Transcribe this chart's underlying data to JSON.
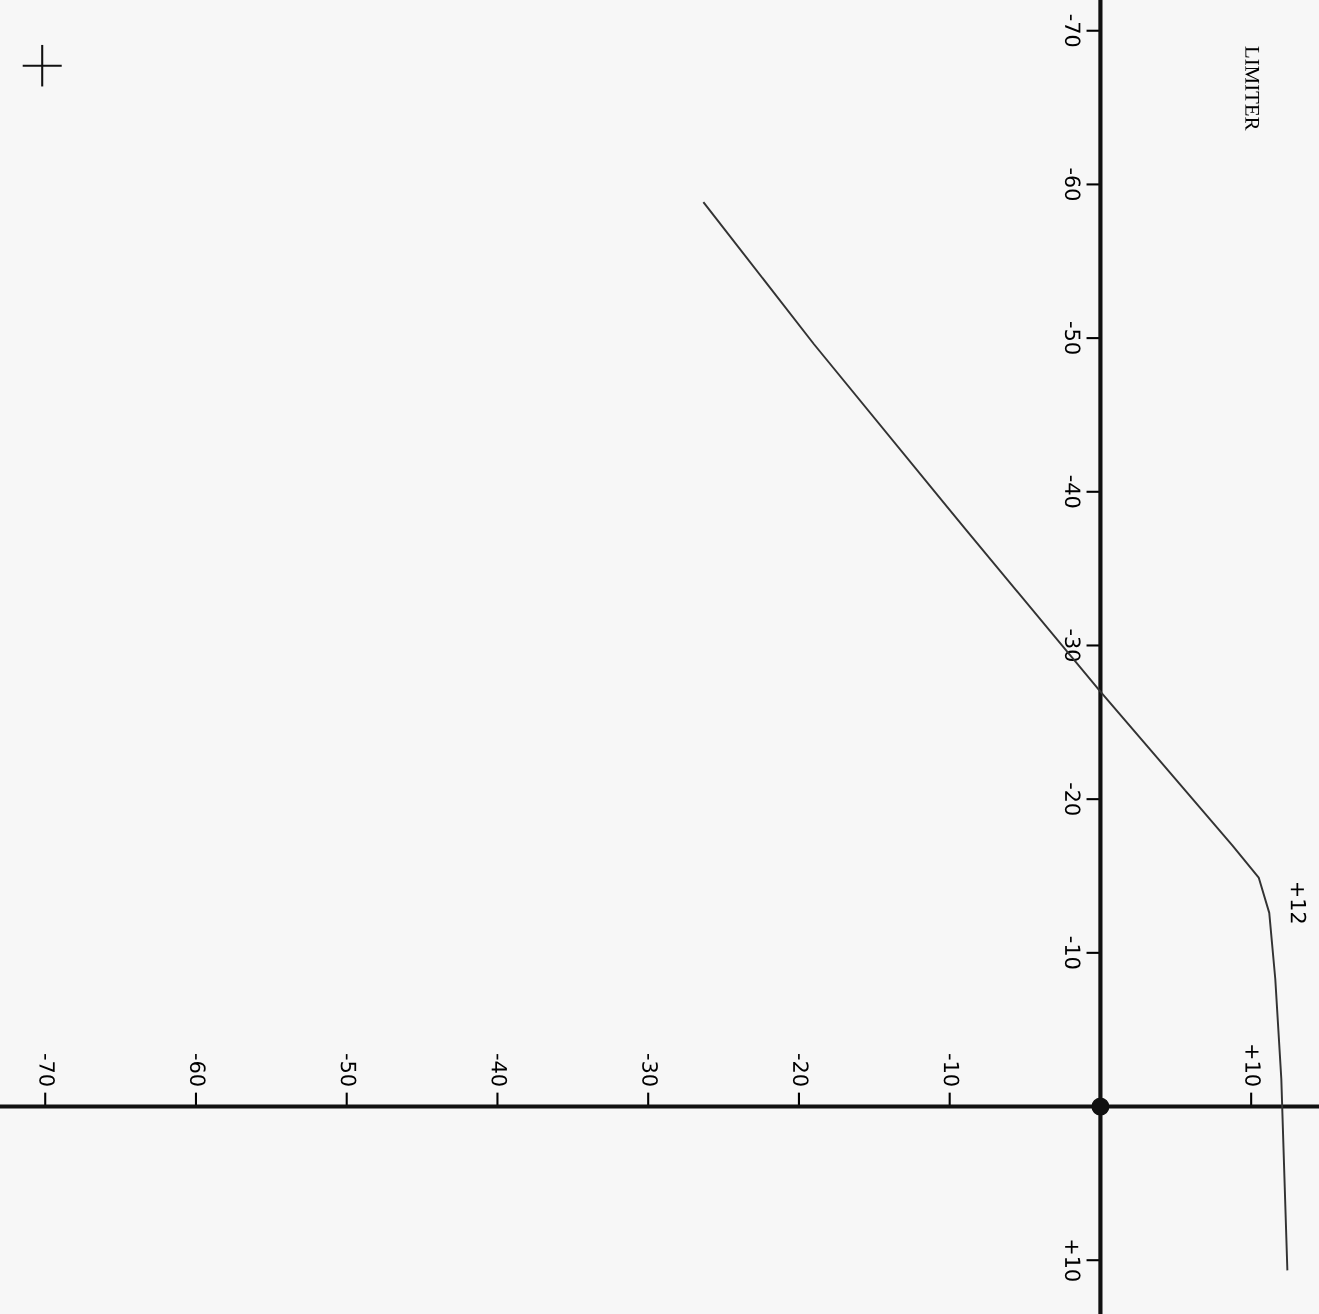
{
  "chart_data": {
    "type": "line",
    "title": "LIMITER",
    "x": [
      -26.3,
      -19.0,
      -8.9,
      0,
      8.75,
      10.5,
      11.2,
      11.6,
      12.0,
      12.4
    ],
    "series": [
      {
        "color": "#333333",
        "values": [
          -58.8,
          -49.6,
          -37.5,
          -27.0,
          -17.0,
          -14.9,
          -12.6,
          -8.3,
          -1.8,
          10.6
        ]
      }
    ],
    "xlim": [
      -73,
      14.5
    ],
    "ylim": [
      13.5,
      -72
    ],
    "xticks": [
      -70,
      -60,
      -50,
      -40,
      -30,
      -20,
      -10,
      {
        "value": 10,
        "label": "+10"
      }
    ],
    "yticks": [
      -70,
      -60,
      -50,
      -40,
      -30,
      -20,
      -10,
      {
        "value": 10,
        "label": "+10"
      }
    ],
    "annotations": [
      "+12"
    ],
    "grid": false,
    "legend": false,
    "marker": "none",
    "line_style": "solid"
  }
}
